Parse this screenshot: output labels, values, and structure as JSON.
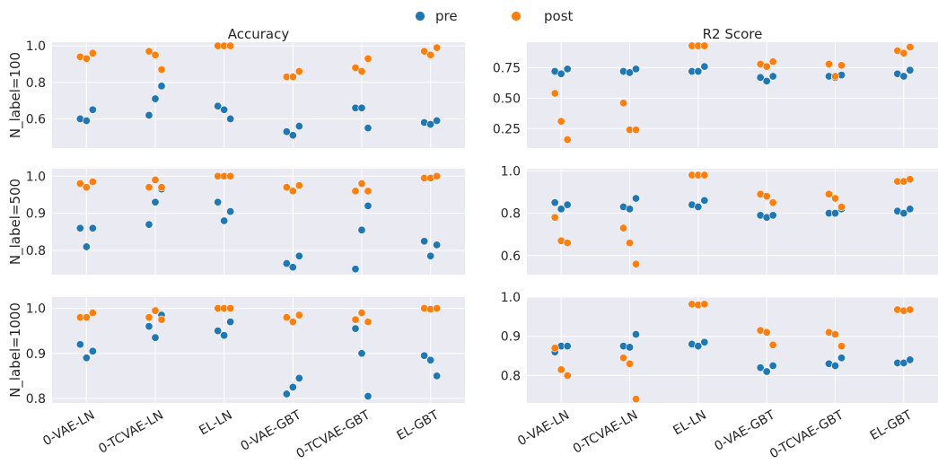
{
  "legend": {
    "items": [
      {
        "label": "pre",
        "color": "#1f77b4"
      },
      {
        "label": "post",
        "color": "#ff7f0e"
      }
    ],
    "placement": "top-center"
  },
  "categories": [
    "0-VAE-LN",
    "0-TCVAE-LN",
    "EL-LN",
    "0-VAE-GBT",
    "0-TCVAE-GBT",
    "EL-GBT"
  ],
  "chart_data": [
    {
      "type": "scatter",
      "title": "Accuracy",
      "ylabel": "N_label=100",
      "ylim": [
        0.44,
        1.02
      ],
      "yticks": [
        0.6,
        0.8,
        1.0
      ],
      "ytick_labels": [
        "0.6",
        "0.8",
        "1.0"
      ],
      "show_xticks": false,
      "series": [
        {
          "name": "pre",
          "values": [
            [
              0.6,
              0.59,
              0.65
            ],
            [
              0.62,
              0.71,
              0.78
            ],
            [
              0.67,
              0.65,
              0.6
            ],
            [
              0.53,
              0.51,
              0.56
            ],
            [
              0.66,
              0.66,
              0.55
            ],
            [
              0.58,
              0.57,
              0.59
            ]
          ]
        },
        {
          "name": "post",
          "values": [
            [
              0.94,
              0.93,
              0.96
            ],
            [
              0.97,
              0.95,
              0.87
            ],
            [
              1.0,
              1.0,
              1.0
            ],
            [
              0.83,
              0.83,
              0.86
            ],
            [
              0.88,
              0.86,
              0.93
            ],
            [
              0.97,
              0.95,
              0.99
            ]
          ]
        }
      ]
    },
    {
      "type": "scatter",
      "title": "R2 Score",
      "ylabel": "",
      "ylim": [
        0.09,
        0.96
      ],
      "yticks": [
        0.25,
        0.5,
        0.75
      ],
      "ytick_labels": [
        "0.25",
        "0.50",
        "0.75"
      ],
      "show_xticks": false,
      "series": [
        {
          "name": "pre",
          "values": [
            [
              0.72,
              0.7,
              0.74
            ],
            [
              0.72,
              0.71,
              0.74
            ],
            [
              0.72,
              0.72,
              0.76
            ],
            [
              0.67,
              0.64,
              0.68
            ],
            [
              0.68,
              0.67,
              0.69
            ],
            [
              0.7,
              0.68,
              0.73
            ]
          ]
        },
        {
          "name": "post",
          "values": [
            [
              0.54,
              0.31,
              0.16
            ],
            [
              0.46,
              0.24,
              0.24
            ],
            [
              0.93,
              0.93,
              0.93
            ],
            [
              0.78,
              0.76,
              0.8
            ],
            [
              0.78,
              0.68,
              0.77
            ],
            [
              0.89,
              0.87,
              0.92
            ]
          ]
        }
      ]
    },
    {
      "type": "scatter",
      "title": "",
      "ylabel": "N_label=500",
      "ylim": [
        0.735,
        1.02
      ],
      "yticks": [
        0.8,
        0.9,
        1.0
      ],
      "ytick_labels": [
        "0.8",
        "0.9",
        "1.0"
      ],
      "show_xticks": false,
      "series": [
        {
          "name": "pre",
          "values": [
            [
              0.86,
              0.81,
              0.86
            ],
            [
              0.87,
              0.93,
              0.965
            ],
            [
              0.93,
              0.88,
              0.905
            ],
            [
              0.765,
              0.755,
              0.785
            ],
            [
              0.75,
              0.855,
              0.92
            ],
            [
              0.825,
              0.785,
              0.815
            ]
          ]
        },
        {
          "name": "post",
          "values": [
            [
              0.98,
              0.97,
              0.985
            ],
            [
              0.97,
              0.99,
              0.97
            ],
            [
              1.0,
              1.0,
              1.0
            ],
            [
              0.97,
              0.96,
              0.975
            ],
            [
              0.96,
              0.98,
              0.96
            ],
            [
              0.995,
              0.995,
              1.0
            ]
          ]
        }
      ]
    },
    {
      "type": "scatter",
      "title": "",
      "ylabel": "",
      "ylim": [
        0.51,
        1.01
      ],
      "yticks": [
        0.6,
        0.8,
        1.0
      ],
      "ytick_labels": [
        "0.6",
        "0.8",
        "1.0"
      ],
      "show_xticks": false,
      "series": [
        {
          "name": "pre",
          "values": [
            [
              0.85,
              0.82,
              0.84
            ],
            [
              0.83,
              0.82,
              0.87
            ],
            [
              0.84,
              0.83,
              0.86
            ],
            [
              0.79,
              0.78,
              0.79
            ],
            [
              0.8,
              0.8,
              0.82
            ],
            [
              0.81,
              0.8,
              0.82
            ]
          ]
        },
        {
          "name": "post",
          "values": [
            [
              0.78,
              0.67,
              0.66
            ],
            [
              0.73,
              0.66,
              0.56
            ],
            [
              0.98,
              0.98,
              0.98
            ],
            [
              0.89,
              0.88,
              0.85
            ],
            [
              0.89,
              0.87,
              0.83
            ],
            [
              0.95,
              0.95,
              0.96
            ]
          ]
        }
      ]
    },
    {
      "type": "scatter",
      "title": "",
      "ylabel": "N_label=1000",
      "ylim": [
        0.79,
        1.025
      ],
      "yticks": [
        0.8,
        0.9,
        1.0
      ],
      "ytick_labels": [
        "0.8",
        "0.9",
        "1.0"
      ],
      "show_xticks": true,
      "series": [
        {
          "name": "pre",
          "values": [
            [
              0.92,
              0.89,
              0.905
            ],
            [
              0.96,
              0.935,
              0.985
            ],
            [
              0.95,
              0.94,
              0.97
            ],
            [
              0.81,
              0.825,
              0.845
            ],
            [
              0.955,
              0.9,
              0.805
            ],
            [
              0.895,
              0.885,
              0.85
            ]
          ]
        },
        {
          "name": "post",
          "values": [
            [
              0.98,
              0.98,
              0.99
            ],
            [
              0.98,
              0.995,
              0.975
            ],
            [
              1.0,
              1.0,
              1.0
            ],
            [
              0.98,
              0.97,
              0.985
            ],
            [
              0.975,
              0.99,
              0.97
            ],
            [
              1.0,
              0.998,
              1.0
            ]
          ]
        }
      ]
    },
    {
      "type": "scatter",
      "title": "",
      "ylabel": "",
      "ylim": [
        0.73,
        1.0
      ],
      "yticks": [
        0.8,
        0.9,
        1.0
      ],
      "ytick_labels": [
        "0.8",
        "0.9",
        "1.0"
      ],
      "show_xticks": true,
      "series": [
        {
          "name": "pre",
          "values": [
            [
              0.86,
              0.875,
              0.875
            ],
            [
              0.875,
              0.872,
              0.905
            ],
            [
              0.88,
              0.875,
              0.885
            ],
            [
              0.82,
              0.81,
              0.825
            ],
            [
              0.83,
              0.825,
              0.845
            ],
            [
              0.832,
              0.832,
              0.84
            ]
          ]
        },
        {
          "name": "post",
          "values": [
            [
              0.87,
              0.815,
              0.8
            ],
            [
              0.845,
              0.83,
              0.74
            ],
            [
              0.982,
              0.98,
              0.982
            ],
            [
              0.915,
              0.91,
              0.878
            ],
            [
              0.91,
              0.905,
              0.875
            ],
            [
              0.968,
              0.965,
              0.968
            ]
          ]
        }
      ]
    }
  ]
}
